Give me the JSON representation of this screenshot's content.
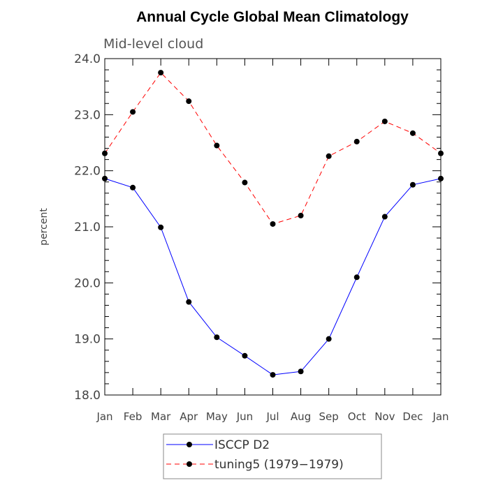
{
  "chart_data": {
    "type": "line",
    "title": "Annual Cycle Global Mean Climatology",
    "subtitle": "Mid-level cloud",
    "xlabel": "",
    "ylabel": "percent",
    "ylim": [
      18.0,
      24.0
    ],
    "yticks": [
      "18.0",
      "19.0",
      "20.0",
      "21.0",
      "22.0",
      "23.0",
      "24.0"
    ],
    "categories": [
      "Jan",
      "Feb",
      "Mar",
      "Apr",
      "May",
      "Jun",
      "Jul",
      "Aug",
      "Sep",
      "Oct",
      "Nov",
      "Dec",
      "Jan"
    ],
    "series": [
      {
        "name": "ISCCP D2",
        "color": "#0000ff",
        "dash": "solid",
        "values": [
          21.86,
          21.7,
          20.99,
          19.66,
          19.03,
          18.7,
          18.36,
          18.42,
          19.0,
          20.1,
          21.18,
          21.75,
          21.86
        ]
      },
      {
        "name": "tuning5 (1979−1979)",
        "color": "#ff0000",
        "dash": "dashed",
        "values": [
          22.31,
          23.05,
          23.75,
          23.24,
          22.45,
          21.79,
          21.05,
          21.2,
          22.26,
          22.52,
          22.88,
          22.67,
          22.31
        ]
      }
    ],
    "grid": false,
    "legend_placement": "bottom-center"
  }
}
